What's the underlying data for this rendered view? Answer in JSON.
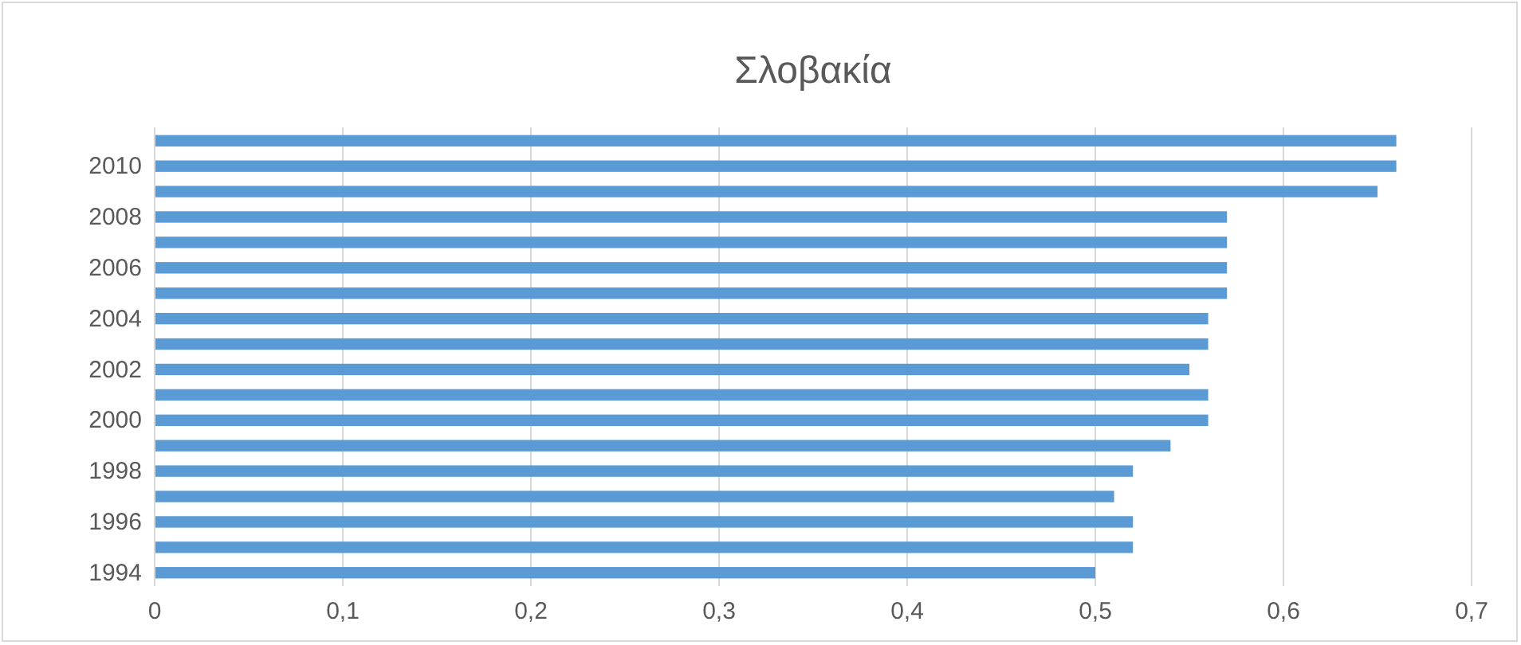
{
  "chart_data": {
    "type": "bar",
    "orientation": "horizontal",
    "title": "Σλοβακία",
    "categories": [
      null,
      "2010",
      null,
      "2008",
      null,
      "2006",
      null,
      "2004",
      null,
      "2002",
      null,
      "2000",
      null,
      "1998",
      null,
      "1996",
      null,
      "1994"
    ],
    "values": [
      0.66,
      0.66,
      0.65,
      0.57,
      0.57,
      0.57,
      0.57,
      0.56,
      0.56,
      0.55,
      0.56,
      0.56,
      0.54,
      0.52,
      0.51,
      0.52,
      0.52,
      0.5
    ],
    "color": "#5b9bd5",
    "xlim": [
      0,
      0.7
    ],
    "xticks": [
      0,
      {
        "value": 0.1,
        "label": "0,1"
      },
      {
        "value": 0.2,
        "label": "0,2"
      },
      {
        "value": 0.3,
        "label": "0,3"
      },
      {
        "value": 0.4,
        "label": "0,4"
      },
      {
        "value": 0.5,
        "label": "0,5"
      },
      {
        "value": 0.6,
        "label": "0,6"
      },
      {
        "value": 0.7,
        "label": "0,7"
      }
    ],
    "grid": "x"
  }
}
